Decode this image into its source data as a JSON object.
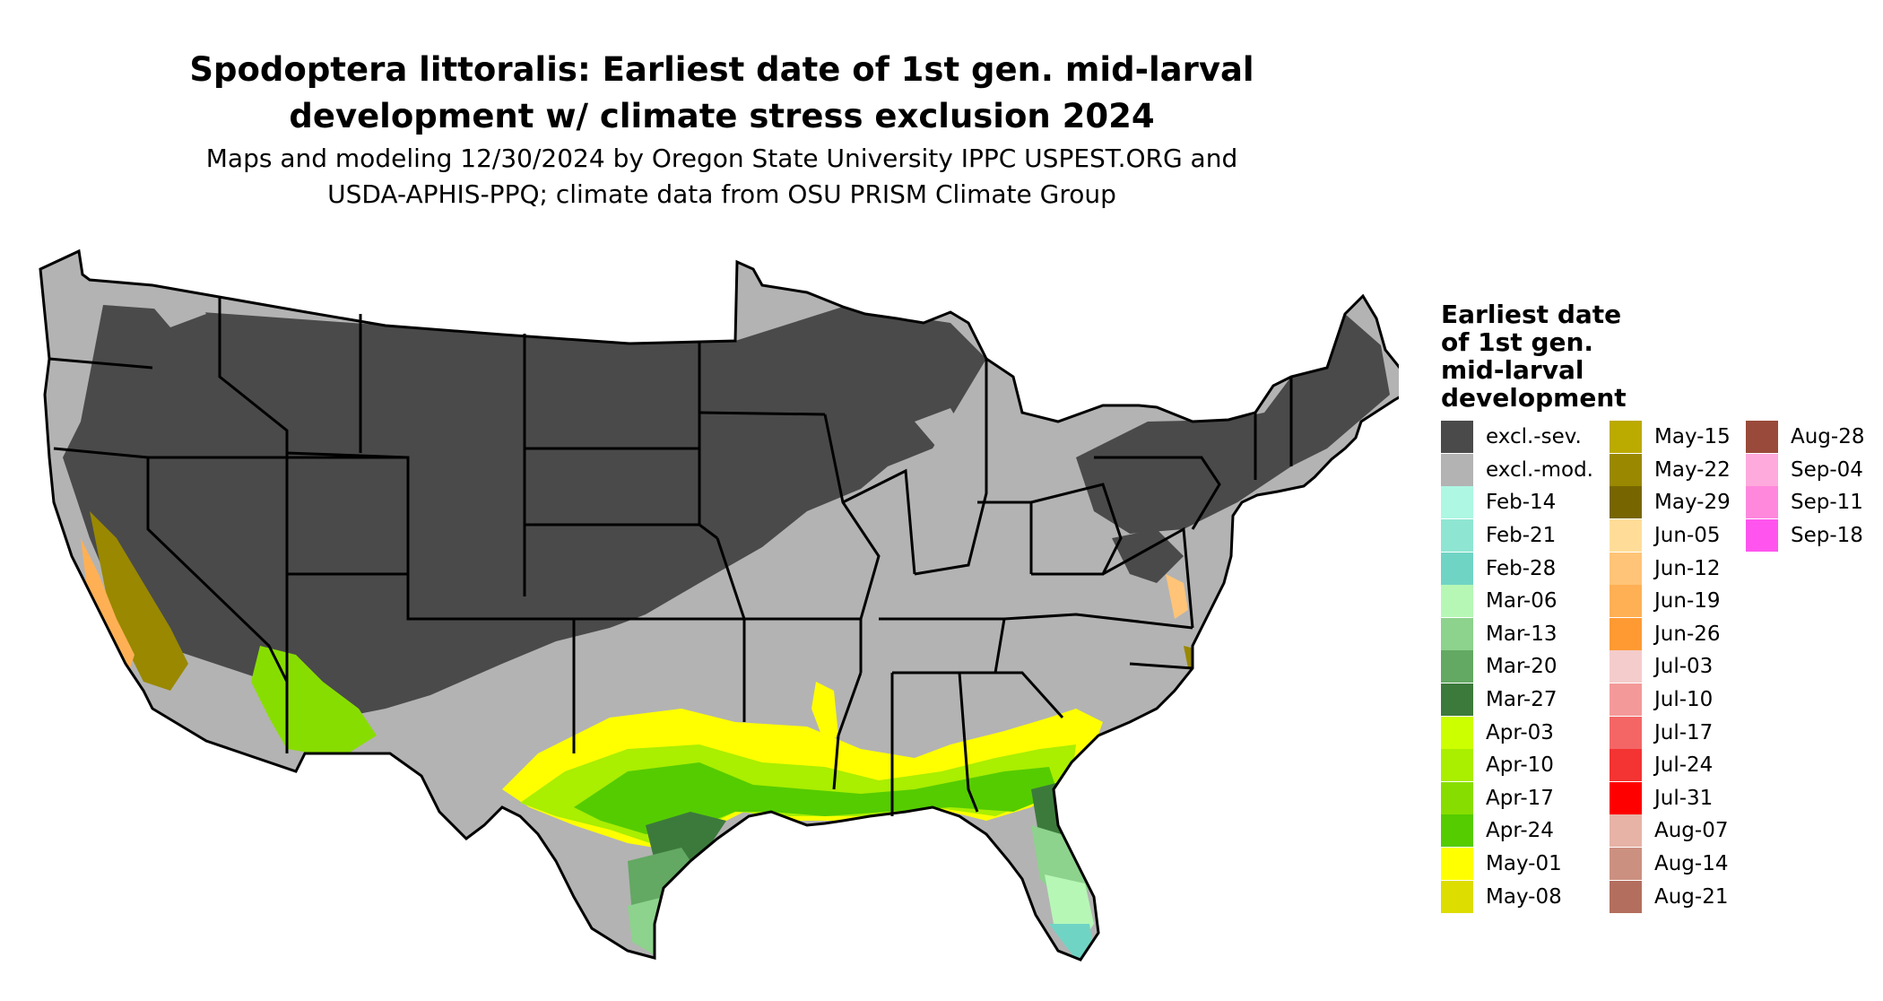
{
  "title_lines": [
    "Spodoptera littoralis: Earliest date of 1st gen. mid-larval",
    "development w/ climate stress exclusion 2024"
  ],
  "subtitle_lines": [
    "Maps and modeling 12/30/2024 by Oregon State University IPPC USPEST.ORG and",
    "USDA-APHIS-PPQ; climate data from OSU PRISM Climate Group"
  ],
  "legend": {
    "title_lines": [
      "Earliest date",
      "of 1st gen.",
      "mid-larval",
      "development"
    ],
    "columns": [
      [
        {
          "label": "excl.-sev.",
          "color": "#4a4a4a"
        },
        {
          "label": "excl.-mod.",
          "color": "#b3b3b3"
        },
        {
          "label": "Feb-14",
          "color": "#aef7e2"
        },
        {
          "label": "Feb-21",
          "color": "#8ee6d2"
        },
        {
          "label": "Feb-28",
          "color": "#70d4c4"
        },
        {
          "label": "Mar-06",
          "color": "#b6f7b6"
        },
        {
          "label": "Mar-13",
          "color": "#8dd28d"
        },
        {
          "label": "Mar-20",
          "color": "#63a863"
        },
        {
          "label": "Mar-27",
          "color": "#3c7a3c"
        },
        {
          "label": "Apr-03",
          "color": "#ccff00"
        },
        {
          "label": "Apr-10",
          "color": "#aaee00"
        },
        {
          "label": "Apr-17",
          "color": "#88dd00"
        },
        {
          "label": "Apr-24",
          "color": "#55cc00"
        },
        {
          "label": "May-01",
          "color": "#ffff00"
        },
        {
          "label": "May-08",
          "color": "#dddd00"
        }
      ],
      [
        {
          "label": "May-15",
          "color": "#bbaa00"
        },
        {
          "label": "May-22",
          "color": "#998800"
        },
        {
          "label": "May-29",
          "color": "#776600"
        },
        {
          "label": "Jun-05",
          "color": "#ffdd99"
        },
        {
          "label": "Jun-12",
          "color": "#ffc477"
        },
        {
          "label": "Jun-19",
          "color": "#ffb055"
        },
        {
          "label": "Jun-26",
          "color": "#ff9a33"
        },
        {
          "label": "Jul-03",
          "color": "#f4cccc"
        },
        {
          "label": "Jul-10",
          "color": "#f49999"
        },
        {
          "label": "Jul-17",
          "color": "#f46666"
        },
        {
          "label": "Jul-24",
          "color": "#f43333"
        },
        {
          "label": "Jul-31",
          "color": "#ff0000"
        },
        {
          "label": "Aug-07",
          "color": "#e6b3a6"
        },
        {
          "label": "Aug-14",
          "color": "#cc9080"
        },
        {
          "label": "Aug-21",
          "color": "#b36e5e"
        }
      ],
      [
        {
          "label": "Aug-28",
          "color": "#9a4a3a"
        },
        {
          "label": "Sep-04",
          "color": "#ffaadd"
        },
        {
          "label": "Sep-11",
          "color": "#ff88dd"
        },
        {
          "label": "Sep-18",
          "color": "#ff55ee"
        }
      ]
    ]
  }
}
